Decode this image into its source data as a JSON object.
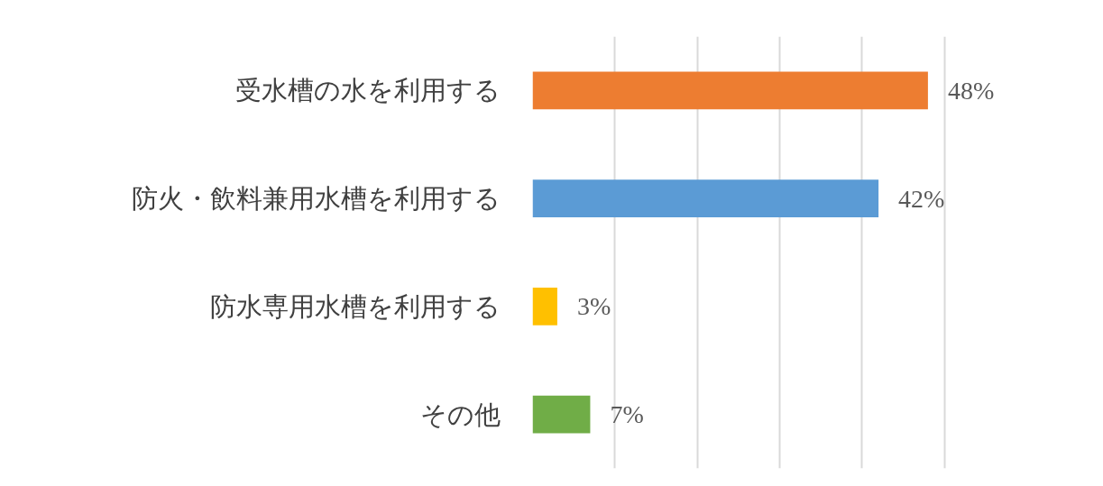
{
  "chart_data": {
    "type": "bar",
    "orientation": "horizontal",
    "categories": [
      "受水槽の水を利用する",
      "防火・飲料兼用水槽を利用する",
      "防水専用水槽を利用する",
      "その他"
    ],
    "values": [
      48,
      42,
      3,
      7
    ],
    "colors": [
      "#ed7d31",
      "#5b9bd5",
      "#ffc000",
      "#70ad47"
    ],
    "value_labels": [
      "48%",
      "42%",
      "3%",
      "7%"
    ],
    "grid": "x",
    "tick_labels": "y"
  }
}
